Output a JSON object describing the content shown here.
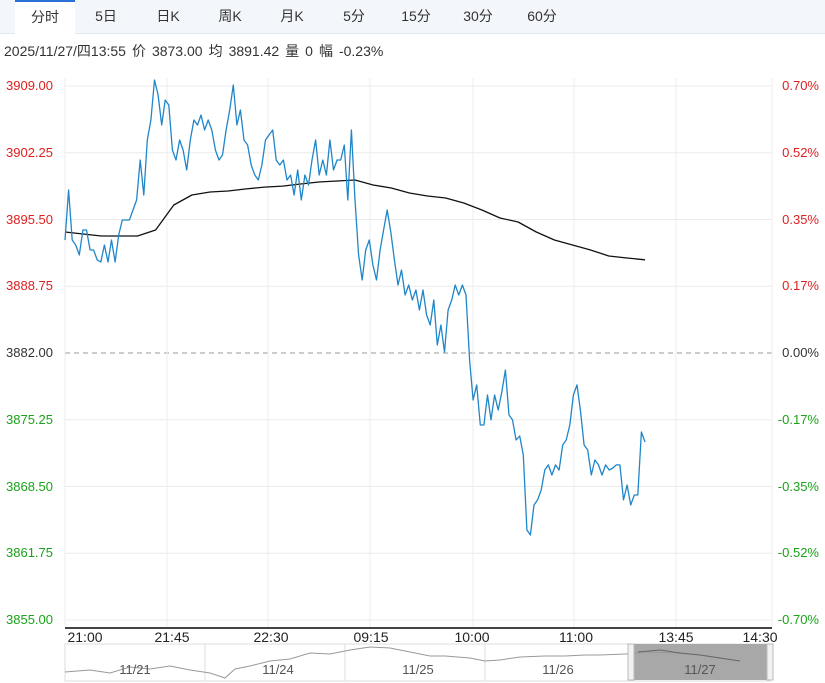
{
  "tabs": [
    {
      "label": "分时",
      "active": true
    },
    {
      "label": "5日"
    },
    {
      "label": "日K"
    },
    {
      "label": "周K"
    },
    {
      "label": "月K"
    },
    {
      "label": "5分"
    },
    {
      "label": "15分"
    },
    {
      "label": "30分"
    },
    {
      "label": "60分"
    }
  ],
  "info": {
    "datetime": "2025/11/27/四13:55",
    "price_label": "价",
    "price": "3873.00",
    "avg_label": "均",
    "avg": "3891.42",
    "vol_label": "量",
    "vol": "0",
    "chg_label": "幅",
    "chg": "-0.23%"
  },
  "colors": {
    "up": "#e02020",
    "down": "#1aa31a",
    "flat": "#333333",
    "price_line": "#1f86c9",
    "avg_line": "#111111",
    "accent": "#2a6fd6"
  },
  "chart_data": {
    "type": "line",
    "prev_close": 3882.0,
    "ylim": [
      3855.0,
      3909.0
    ],
    "y_ticks": [
      "3909.00",
      "3902.25",
      "3895.50",
      "3888.75",
      "3882.00",
      "3875.25",
      "3868.50",
      "3861.75",
      "3855.00"
    ],
    "pct_ticks": [
      "0.70%",
      "0.52%",
      "0.35%",
      "0.17%",
      "0.00%",
      "-0.17%",
      "-0.35%",
      "-0.52%",
      "-0.70%"
    ],
    "x_ticks": [
      "21:00",
      "21:45",
      "22:30",
      "09:15",
      "10:00",
      "11:00",
      "13:45",
      "14:30"
    ],
    "grid": true,
    "series": [
      {
        "key": "price",
        "values": [
          3893.43,
          3898.48,
          3893.43,
          3892.92,
          3891.91,
          3894.44,
          3894.44,
          3892.42,
          3892.42,
          3891.41,
          3891.2,
          3892.92,
          3891.2,
          3893.43,
          3891.2,
          3893.93,
          3895.45,
          3895.45,
          3895.45,
          3896.46,
          3897.47,
          3901.52,
          3897.98,
          3903.54,
          3905.56,
          3909.61,
          3908.09,
          3905.06,
          3907.58,
          3907.08,
          3902.53,
          3901.52,
          3903.54,
          3902.53,
          3900.51,
          3903.54,
          3905.56,
          3905.06,
          3906.07,
          3904.55,
          3905.56,
          3904.55,
          3902.53,
          3901.52,
          3902.02,
          3904.55,
          3906.57,
          3909.1,
          3905.06,
          3906.57,
          3903.54,
          3903.03,
          3901.01,
          3900.0,
          3899.49,
          3901.01,
          3903.54,
          3904.05,
          3904.55,
          3901.52,
          3901.01,
          3901.52,
          3899.49,
          3900.0,
          3897.98,
          3900.51,
          3897.47,
          3900.0,
          3898.99,
          3901.52,
          3903.54,
          3900.0,
          3901.52,
          3900.0,
          3903.54,
          3900.51,
          3901.52,
          3901.52,
          3903.03,
          3897.47,
          3904.55,
          3897.47,
          3891.91,
          3889.38,
          3892.42,
          3893.43,
          3890.9,
          3889.38,
          3892.42,
          3894.44,
          3896.46,
          3894.24,
          3891.41,
          3888.88,
          3890.39,
          3887.87,
          3888.88,
          3887.36,
          3888.37,
          3886.35,
          3888.37,
          3885.84,
          3884.83,
          3887.36,
          3882.81,
          3884.83,
          3882.1,
          3886.35,
          3887.36,
          3888.88,
          3887.87,
          3888.88,
          3887.87,
          3881.29,
          3877.25,
          3878.77,
          3874.72,
          3874.72,
          3877.75,
          3875.23,
          3877.75,
          3876.24,
          3878.06,
          3880.28,
          3875.73,
          3875.23,
          3873.2,
          3873.61,
          3871.69,
          3864.1,
          3863.6,
          3866.63,
          3867.14,
          3868.15,
          3870.17,
          3870.68,
          3869.66,
          3870.68,
          3870.17,
          3872.7,
          3873.2,
          3874.72,
          3877.75,
          3878.77,
          3876.03,
          3872.7,
          3872.19,
          3869.66,
          3871.18,
          3870.68,
          3869.66,
          3870.68,
          3870.17,
          3870.37,
          3870.68,
          3870.68,
          3867.14,
          3868.65,
          3866.63,
          3867.64,
          3867.64,
          3874.01,
          3873.0
        ]
      },
      {
        "key": "avg",
        "values": [
          3894.24,
          3894.03,
          3893.83,
          3893.83,
          3893.83,
          3894.44,
          3896.97,
          3897.98,
          3898.28,
          3898.38,
          3898.59,
          3898.78,
          3898.88,
          3899.09,
          3899.29,
          3899.39,
          3899.49,
          3898.99,
          3898.69,
          3898.18,
          3897.88,
          3897.67,
          3897.17,
          3896.46,
          3895.65,
          3895.25,
          3894.24,
          3893.43,
          3892.92,
          3892.42,
          3891.81,
          3891.61,
          3891.42
        ]
      }
    ]
  }
}
